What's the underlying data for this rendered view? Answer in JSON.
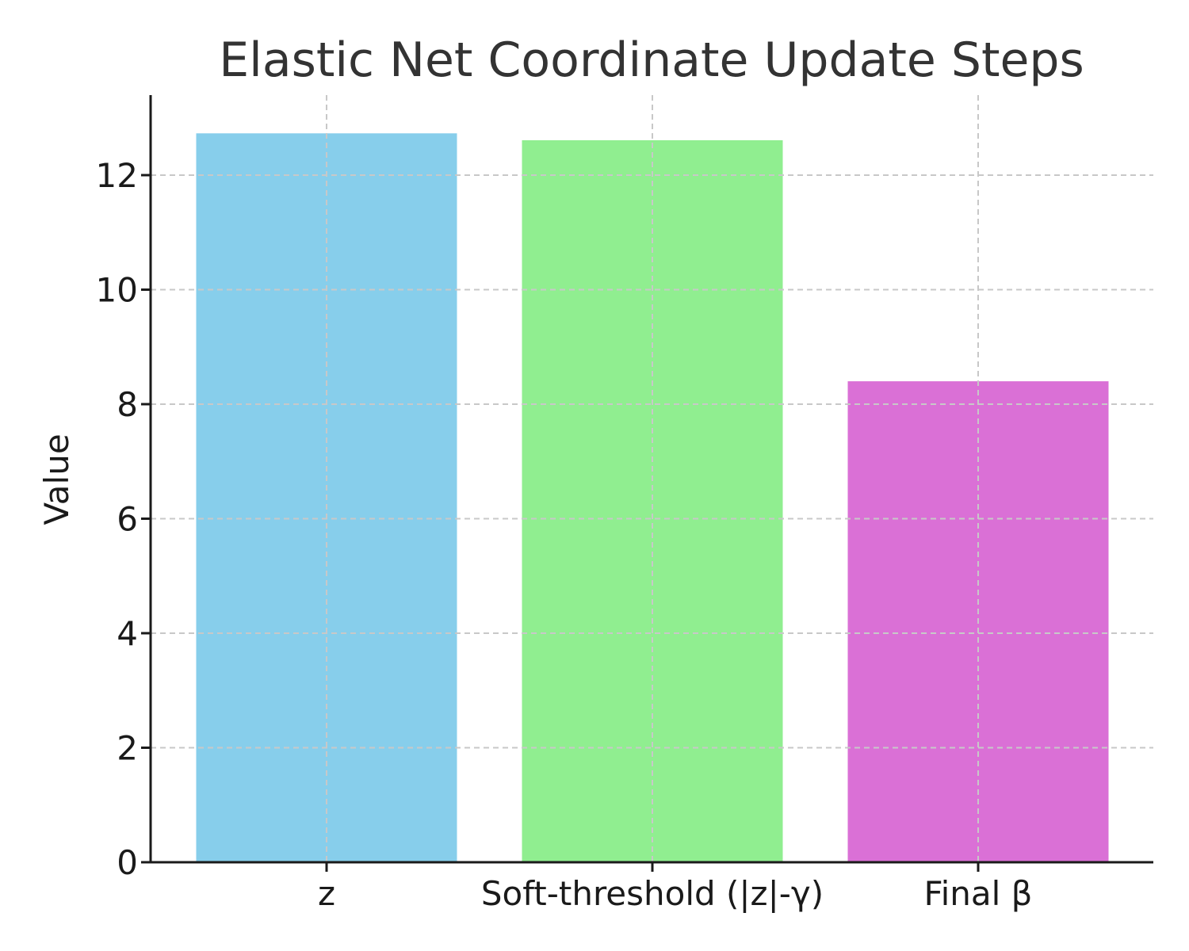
{
  "chart_data": {
    "type": "bar",
    "title": "Elastic Net Coordinate Update Steps",
    "xlabel": "",
    "ylabel": "Value",
    "categories": [
      "z",
      "Soft-threshold (|z|-γ)",
      "Final β"
    ],
    "values": [
      12.73,
      12.61,
      8.4
    ],
    "colors": [
      "#87ceeb",
      "#90ee90",
      "#da70d6"
    ],
    "ylim": [
      0,
      13.4
    ],
    "yticks": [
      "0",
      "2",
      "4",
      "6",
      "8",
      "10",
      "12"
    ],
    "grid": true,
    "legend": "none"
  }
}
